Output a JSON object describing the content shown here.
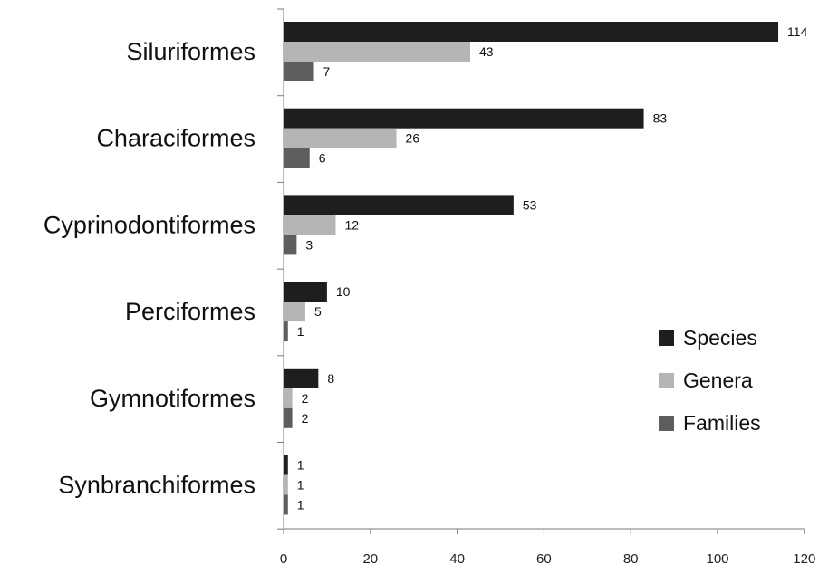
{
  "chart_data": {
    "type": "bar",
    "orientation": "horizontal",
    "categories": [
      "Siluriformes",
      "Characiformes",
      "Cyprinodontiformes",
      "Perciformes",
      "Gymnotiformes",
      "Synbranchiformes"
    ],
    "series": [
      {
        "name": "Species",
        "color": "#1e1e1e",
        "values": [
          114,
          83,
          53,
          10,
          8,
          1
        ]
      },
      {
        "name": "Genera",
        "color": "#b5b5b7",
        "values": [
          43,
          26,
          12,
          5,
          2,
          1
        ]
      },
      {
        "name": "Families",
        "color": "#5e5e60",
        "values": [
          7,
          6,
          3,
          1,
          2,
          1
        ]
      }
    ],
    "x_ticks": [
      0,
      20,
      40,
      60,
      80,
      100,
      120
    ],
    "xlim": [
      0,
      120
    ],
    "grid": false,
    "legend_position": "right",
    "title": "",
    "xlabel": "",
    "ylabel": ""
  }
}
